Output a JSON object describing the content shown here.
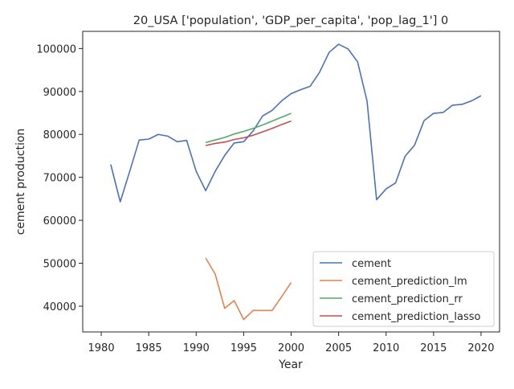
{
  "chart_data": {
    "type": "line",
    "title": "20_USA ['population', 'GDP_per_capita', 'pop_lag_1'] 0",
    "xlabel": "Year",
    "ylabel": "cement production",
    "xlim": [
      1978.05,
      2021.95
    ],
    "ylim": [
      34000,
      104000
    ],
    "x_ticks": [
      1980,
      1985,
      1990,
      1995,
      2000,
      2005,
      2010,
      2015,
      2020
    ],
    "y_ticks": [
      40000,
      50000,
      60000,
      70000,
      80000,
      90000,
      100000
    ],
    "grid": false,
    "legend_position": "lower right",
    "series": [
      {
        "name": "cement",
        "color": "#4c72b0",
        "x": [
          1981,
          1982,
          1983,
          1984,
          1985,
          1986,
          1987,
          1988,
          1989,
          1990,
          1991,
          1992,
          1993,
          1994,
          1995,
          1996,
          1997,
          1998,
          1999,
          2000,
          2001,
          2002,
          2003,
          2004,
          2005,
          2006,
          2007,
          2008,
          2009,
          2010,
          2011,
          2012,
          2013,
          2014,
          2015,
          2016,
          2017,
          2018,
          2019,
          2020
        ],
        "values": [
          73000,
          64300,
          71400,
          78700,
          78900,
          80000,
          79600,
          78300,
          78600,
          71400,
          66900,
          71400,
          75100,
          78000,
          78300,
          80800,
          84300,
          85600,
          87800,
          89500,
          90400,
          91200,
          94500,
          99100,
          101000,
          99900,
          96900,
          87700,
          64800,
          67300,
          68700,
          74900,
          77500,
          83200,
          84900,
          85100,
          86800,
          87000,
          87800,
          89000
        ]
      },
      {
        "name": "cement_prediction_lm",
        "color": "#dd8452",
        "x": [
          1991,
          1992,
          1993,
          1994,
          1995,
          1996,
          1997,
          1998,
          1999,
          2000
        ],
        "values": [
          51200,
          47500,
          39500,
          41300,
          36900,
          39000,
          39000,
          39000,
          42200,
          45500
        ]
      },
      {
        "name": "cement_prediction_rr",
        "color": "#55a868",
        "x": [
          1991,
          1992,
          1993,
          1994,
          1995,
          1996,
          1997,
          1998,
          1999,
          2000
        ],
        "values": [
          78100,
          78700,
          79300,
          80100,
          80700,
          81400,
          82200,
          83100,
          84000,
          84900
        ]
      },
      {
        "name": "cement_prediction_lasso",
        "color": "#c44e52",
        "x": [
          1991,
          1992,
          1993,
          1994,
          1995,
          1996,
          1997,
          1998,
          1999,
          2000
        ],
        "values": [
          77400,
          77900,
          78200,
          78800,
          79200,
          79800,
          80600,
          81400,
          82300,
          83100
        ]
      }
    ]
  }
}
